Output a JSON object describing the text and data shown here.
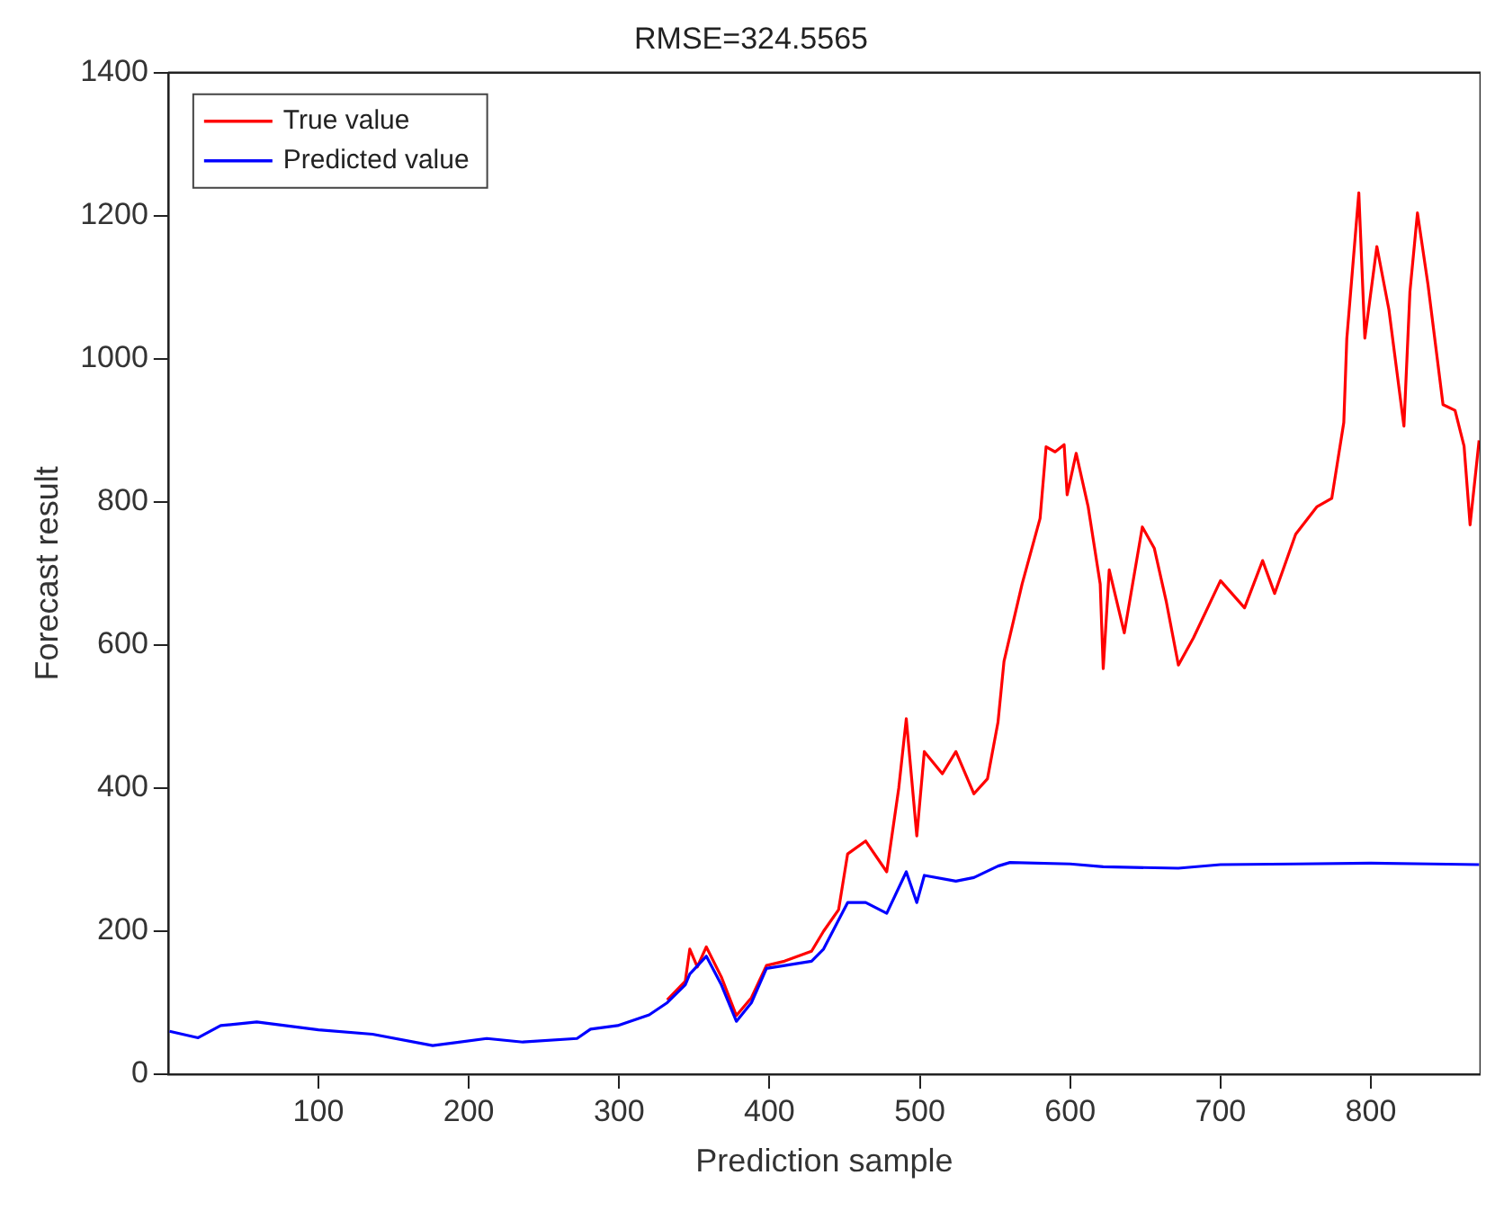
{
  "chart_data": {
    "type": "line",
    "title": "RMSE=324.5565",
    "xlabel": "Prediction sample",
    "ylabel": "Forecast result",
    "xlim": [
      0,
      873
    ],
    "xticks": [
      100,
      200,
      300,
      400,
      500,
      600,
      700,
      800
    ],
    "ylim": [
      0,
      1400
    ],
    "yticks": [
      0,
      200,
      400,
      600,
      800,
      1000,
      1200,
      1400
    ],
    "grid": false,
    "legend": "top left",
    "marker": "none",
    "line_style": "solid",
    "series": [
      {
        "name": "True value",
        "color": "#ff0000",
        "x": [
          332,
          344,
          347,
          352,
          358,
          368,
          378,
          388,
          398,
          410,
          428,
          436,
          446,
          452,
          464,
          478,
          486,
          491,
          498,
          503,
          515,
          524,
          536,
          545,
          552,
          556,
          568,
          580,
          584,
          590,
          596,
          598,
          604,
          612,
          620,
          622,
          626,
          636,
          648,
          656,
          664,
          672,
          682,
          700,
          716,
          728,
          736,
          750,
          764,
          774,
          782,
          784,
          792,
          796,
          804,
          812,
          822,
          826,
          831,
          838,
          848,
          856,
          862,
          866,
          872
        ],
        "values": [
          104,
          130,
          175,
          150,
          178,
          136,
          82,
          107,
          152,
          158,
          172,
          200,
          230,
          308,
          326,
          283,
          400,
          497,
          333,
          451,
          420,
          451,
          392,
          413,
          492,
          577,
          685,
          777,
          877,
          870,
          880,
          810,
          868,
          793,
          685,
          567,
          705,
          617,
          765,
          735,
          660,
          572,
          610,
          690,
          652,
          718,
          672,
          755,
          793,
          805,
          911,
          1028,
          1232,
          1029,
          1157,
          1069,
          906,
          1094,
          1204,
          1104,
          936,
          928,
          878,
          768,
          886
        ]
      },
      {
        "name": "Predicted value",
        "color": "#0000ff",
        "x": [
          1,
          20,
          35,
          59,
          100,
          136,
          176,
          212,
          236,
          272,
          281,
          299,
          320,
          332,
          344,
          347,
          358,
          368,
          378,
          388,
          398,
          428,
          436,
          452,
          464,
          478,
          491,
          498,
          503,
          524,
          536,
          552,
          560,
          600,
          622,
          672,
          700,
          750,
          800,
          840,
          872
        ],
        "values": [
          60,
          51,
          68,
          73,
          62,
          56,
          40,
          50,
          45,
          50,
          63,
          68,
          83,
          100,
          125,
          140,
          165,
          125,
          74,
          100,
          148,
          158,
          175,
          240,
          240,
          225,
          283,
          240,
          278,
          270,
          275,
          291,
          296,
          294,
          290,
          288,
          293,
          294,
          295,
          294,
          293
        ]
      }
    ]
  }
}
